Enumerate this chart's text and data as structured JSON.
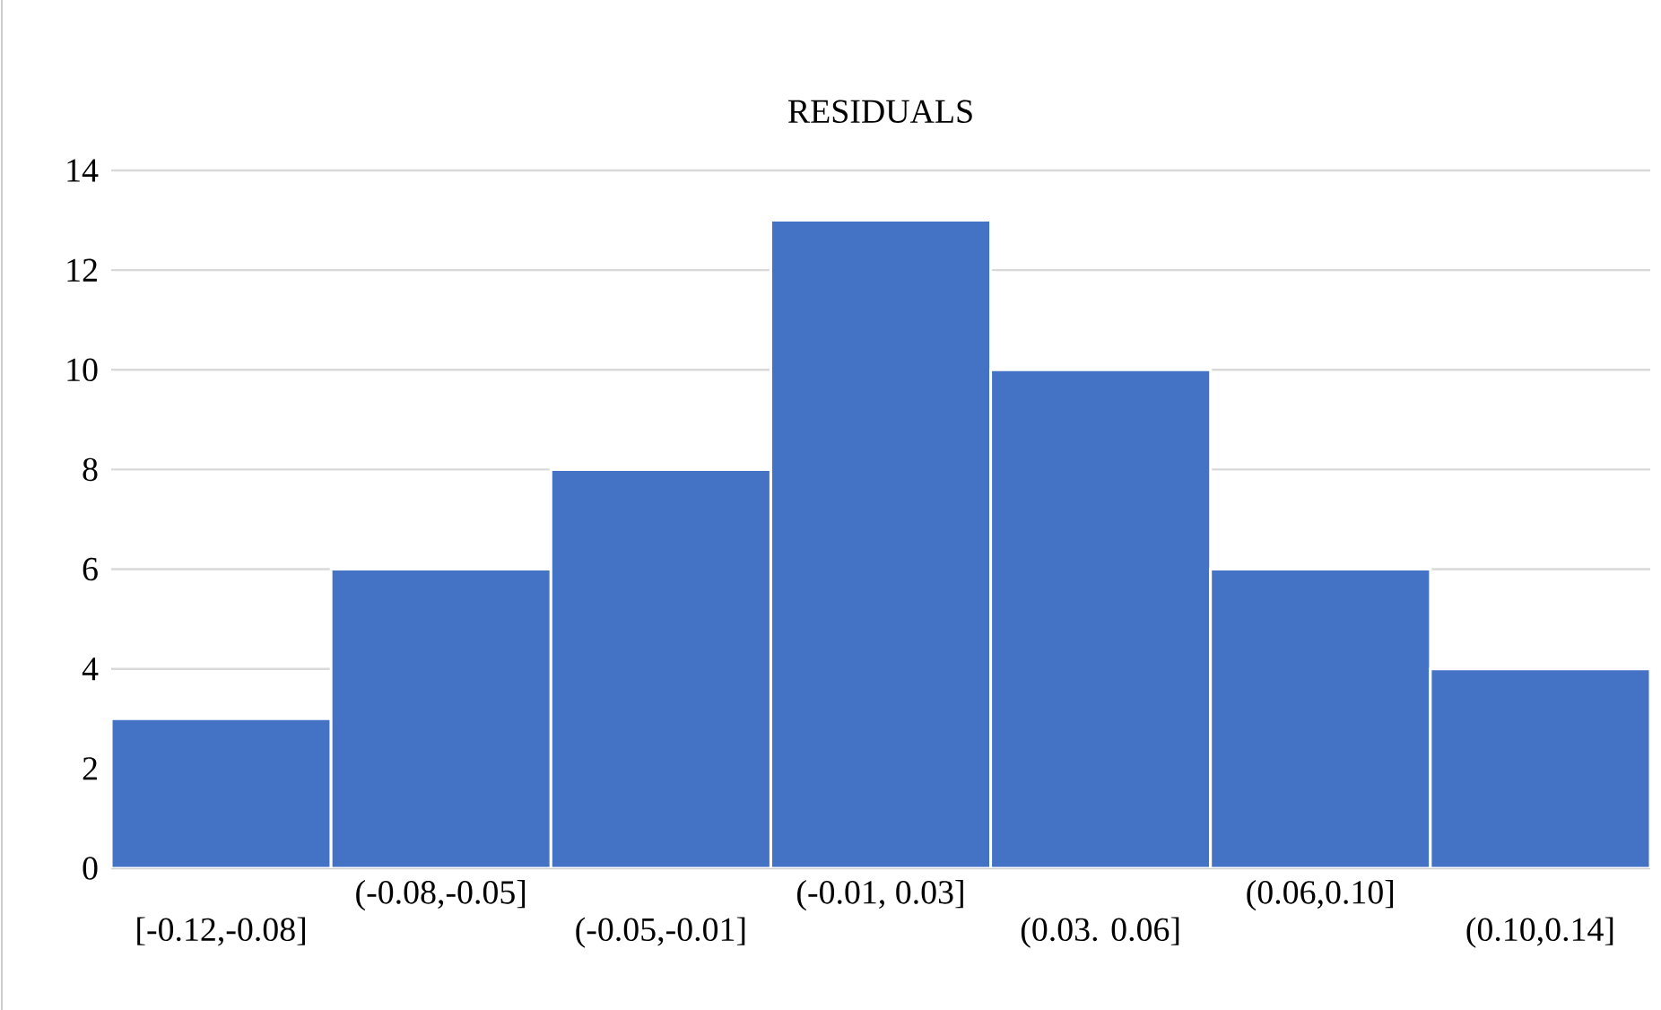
{
  "chart_data": {
    "type": "bar",
    "title": "RESIDUALS",
    "categories": [
      "[-0.12,-0.08]",
      "(-0.08,-0.05]",
      "(-0.05,-0.01]",
      "(-0.01, 0.03]",
      "(0.03. 0.06]",
      "(0.06,0.10]",
      "(0.10,0.14]"
    ],
    "values": [
      3,
      6,
      8,
      13,
      10,
      6,
      4
    ],
    "color": "#4472c4",
    "ylim": [
      0,
      14
    ],
    "yticks": [
      0,
      2,
      4,
      6,
      8,
      10,
      12,
      14
    ],
    "grid": "y"
  }
}
